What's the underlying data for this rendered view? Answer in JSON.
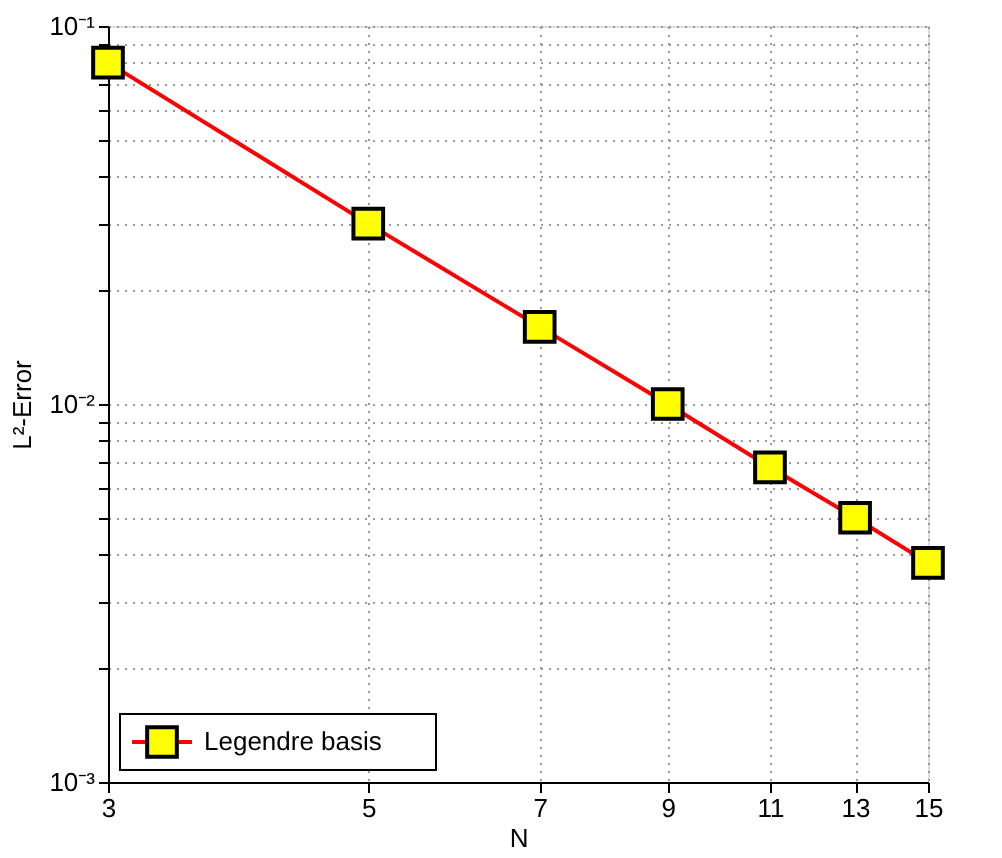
{
  "chart_data": {
    "type": "line",
    "xlabel": "N",
    "ylabel": "L²-Error",
    "log": "xy",
    "x": [
      3,
      5,
      7,
      9,
      11,
      13,
      15
    ],
    "series": [
      {
        "name": "Legendre basis",
        "color": "#ff0000",
        "values": [
          0.08,
          0.03,
          0.016,
          0.01,
          0.0068,
          0.005,
          0.0038
        ]
      }
    ],
    "xlim": [
      3,
      15
    ],
    "xticks": [
      3,
      5,
      7,
      9,
      11,
      13,
      15
    ],
    "ylim": [
      0.001,
      0.1
    ],
    "yticks": [
      {
        "value": 0.001,
        "label": "10⁻³"
      },
      {
        "value": 0.002,
        "label": null
      },
      {
        "value": 0.003,
        "label": null
      },
      {
        "value": 0.004,
        "label": null
      },
      {
        "value": 0.005,
        "label": null
      },
      {
        "value": 0.006,
        "label": null
      },
      {
        "value": 0.007,
        "label": null
      },
      {
        "value": 0.008,
        "label": null
      },
      {
        "value": 0.009,
        "label": null
      },
      {
        "value": 0.01,
        "label": "10⁻²"
      },
      {
        "value": 0.02,
        "label": null
      },
      {
        "value": 0.03,
        "label": null
      },
      {
        "value": 0.04,
        "label": null
      },
      {
        "value": 0.05,
        "label": null
      },
      {
        "value": 0.06,
        "label": null
      },
      {
        "value": 0.07,
        "label": null
      },
      {
        "value": 0.08,
        "label": null
      },
      {
        "value": 0.09,
        "label": null
      },
      {
        "value": 0.1,
        "label": "10⁻¹"
      }
    ],
    "grid": true,
    "legend": "bottom left",
    "marker": "square",
    "line_style": "solid"
  }
}
